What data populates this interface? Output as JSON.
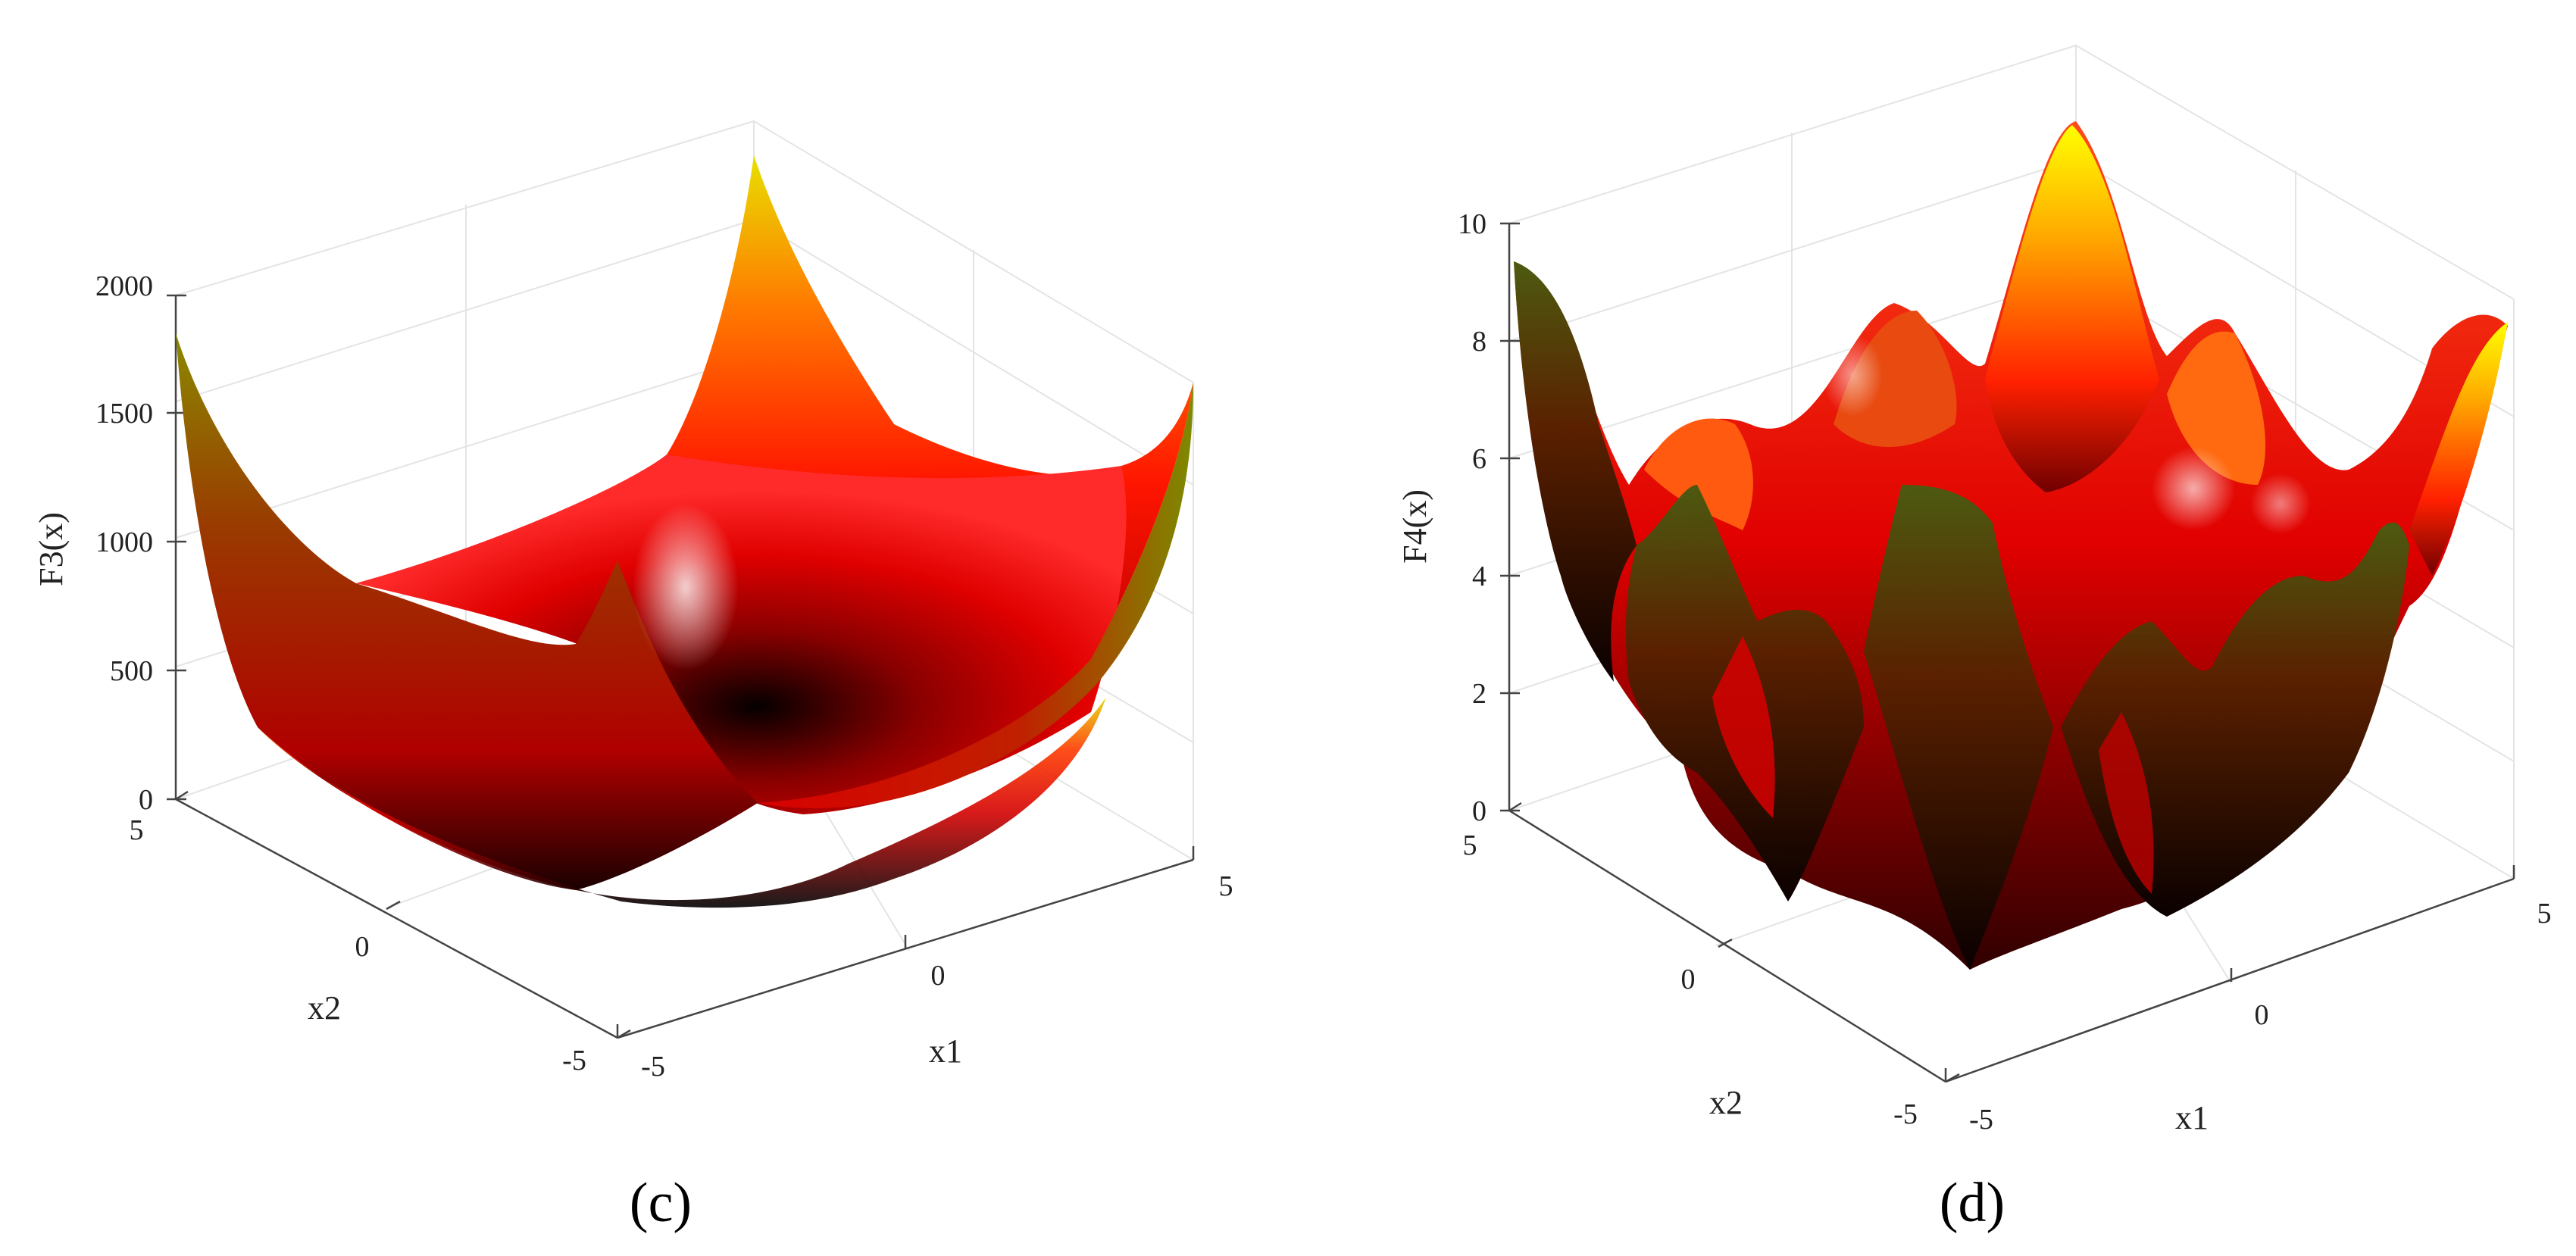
{
  "chart_data": [
    {
      "type": "surface",
      "panel_label": "(c)",
      "xlabel": "x1",
      "ylabel": "x2",
      "zlabel": "F3(x)",
      "xlim": [
        -5,
        5
      ],
      "ylim": [
        -5,
        5
      ],
      "zlim": [
        0,
        2000
      ],
      "x_ticks": [
        "-5",
        "0",
        "5"
      ],
      "y_ticks": [
        "-5",
        "0",
        "5"
      ],
      "z_ticks": [
        "0",
        "500",
        "1000",
        "1500",
        "2000"
      ],
      "grid": true,
      "colormap": [
        "#000000",
        "#ff0000",
        "#ffff00"
      ]
    },
    {
      "type": "surface",
      "panel_label": "(d)",
      "xlabel": "x1",
      "ylabel": "x2",
      "zlabel": "F4(x)",
      "xlim": [
        -5,
        5
      ],
      "ylim": [
        -5,
        5
      ],
      "zlim": [
        0,
        10
      ],
      "x_ticks": [
        "-5",
        "0",
        "5"
      ],
      "y_ticks": [
        "-5",
        "0",
        "5"
      ],
      "z_ticks": [
        "0",
        "2",
        "4",
        "6",
        "8",
        "10"
      ],
      "grid": true,
      "colormap": [
        "#000000",
        "#ff0000",
        "#ffff00"
      ]
    }
  ]
}
